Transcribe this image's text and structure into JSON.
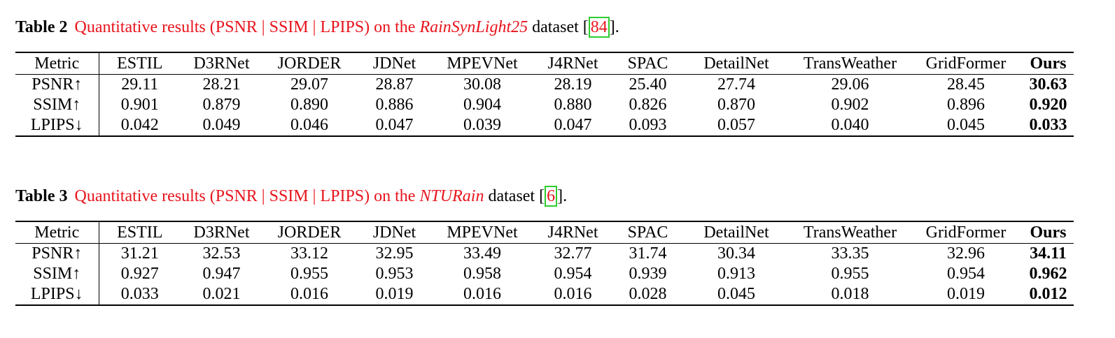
{
  "tables": [
    {
      "label": "Table 2",
      "caption_text": "Quantitative results (PSNR | SSIM | LPIPS) on the ",
      "dataset": "RainSynLight25",
      "suffix_before_cite": " dataset [",
      "cite": "84",
      "suffix_after_cite": "].",
      "columns": [
        "Metric",
        "ESTIL",
        "D3RNet",
        "JORDER",
        "JDNet",
        "MPEVNet",
        "J4RNet",
        "SPAC",
        "DetailNet",
        "TransWeather",
        "GridFormer",
        "Ours"
      ],
      "rows": [
        [
          "PSNR↑",
          "29.11",
          "28.21",
          "29.07",
          "28.87",
          "30.08",
          "28.19",
          "25.40",
          "27.74",
          "29.06",
          "28.45",
          "30.63"
        ],
        [
          "SSIM↑",
          "0.901",
          "0.879",
          "0.890",
          "0.886",
          "0.904",
          "0.880",
          "0.826",
          "0.870",
          "0.902",
          "0.896",
          "0.920"
        ],
        [
          "LPIPS↓",
          "0.042",
          "0.049",
          "0.046",
          "0.047",
          "0.039",
          "0.047",
          "0.093",
          "0.057",
          "0.040",
          "0.045",
          "0.033"
        ]
      ]
    },
    {
      "label": "Table 3",
      "caption_text": "Quantitative results (PSNR | SSIM | LPIPS) on the ",
      "dataset": "NTURain",
      "suffix_before_cite": " dataset [",
      "cite": "6",
      "suffix_after_cite": "].",
      "columns": [
        "Metric",
        "ESTIL",
        "D3RNet",
        "JORDER",
        "JDNet",
        "MPEVNet",
        "J4RNet",
        "SPAC",
        "DetailNet",
        "TransWeather",
        "GridFormer",
        "Ours"
      ],
      "rows": [
        [
          "PSNR↑",
          "31.21",
          "32.53",
          "33.12",
          "32.95",
          "33.49",
          "32.77",
          "31.74",
          "30.34",
          "33.35",
          "32.96",
          "34.11"
        ],
        [
          "SSIM↑",
          "0.927",
          "0.947",
          "0.955",
          "0.953",
          "0.958",
          "0.954",
          "0.939",
          "0.913",
          "0.955",
          "0.954",
          "0.962"
        ],
        [
          "LPIPS↓",
          "0.033",
          "0.021",
          "0.016",
          "0.019",
          "0.016",
          "0.016",
          "0.028",
          "0.045",
          "0.018",
          "0.019",
          "0.012"
        ]
      ]
    }
  ],
  "colors": {
    "caption_accent": "#e8141c",
    "cite_box": "#2ecc2e"
  }
}
